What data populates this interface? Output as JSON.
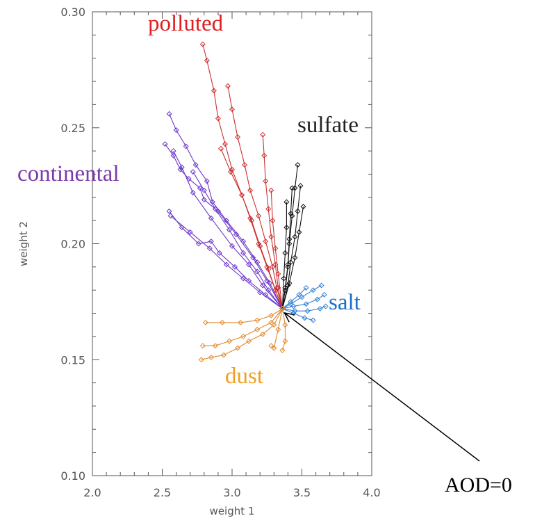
{
  "chart_data": {
    "type": "line",
    "title": "",
    "xlabel": "weight 1",
    "ylabel": "weight 2",
    "xlim": [
      2.0,
      4.0
    ],
    "ylim": [
      0.1,
      0.3
    ],
    "x_ticks": [
      "2.0",
      "2.5",
      "3.0",
      "3.5",
      "4.0"
    ],
    "y_ticks": [
      "0.10",
      "0.15",
      "0.20",
      "0.25",
      "0.30"
    ],
    "origin": {
      "x": 3.36,
      "y": 0.172
    },
    "marker": "diamond",
    "grid": false,
    "legend": "none",
    "series": [
      {
        "name": "continental",
        "color": "#6a35c9",
        "label_color": "#7a3aa8",
        "tracks": [
          [
            [
              2.55,
              0.256
            ],
            [
              2.6,
              0.249
            ],
            [
              2.67,
              0.242
            ],
            [
              2.74,
              0.234
            ],
            [
              2.82,
              0.227
            ],
            [
              2.86,
              0.218
            ],
            [
              2.96,
              0.21
            ],
            [
              3.08,
              0.201
            ],
            [
              3.18,
              0.192
            ],
            [
              3.27,
              0.183
            ],
            [
              3.36,
              0.172
            ]
          ],
          [
            [
              2.52,
              0.243
            ],
            [
              2.58,
              0.238
            ],
            [
              2.63,
              0.232
            ],
            [
              2.69,
              0.228
            ],
            [
              2.77,
              0.224
            ],
            [
              2.8,
              0.219
            ],
            [
              2.9,
              0.214
            ],
            [
              3.03,
              0.204
            ],
            [
              3.15,
              0.194
            ],
            [
              3.25,
              0.184
            ],
            [
              3.36,
              0.172
            ]
          ],
          [
            [
              2.58,
              0.24
            ],
            [
              2.64,
              0.233
            ],
            [
              2.72,
              0.222
            ],
            [
              2.85,
              0.211
            ],
            [
              3.0,
              0.199
            ],
            [
              3.12,
              0.191
            ],
            [
              3.22,
              0.182
            ],
            [
              3.36,
              0.172
            ]
          ],
          [
            [
              2.72,
              0.231
            ],
            [
              2.8,
              0.223
            ],
            [
              2.88,
              0.215
            ],
            [
              2.98,
              0.206
            ],
            [
              3.08,
              0.196
            ],
            [
              3.18,
              0.188
            ],
            [
              3.26,
              0.18
            ],
            [
              3.36,
              0.172
            ]
          ],
          [
            [
              2.55,
              0.214
            ],
            [
              2.64,
              0.207
            ],
            [
              2.76,
              0.2
            ],
            [
              2.85,
              0.201
            ],
            [
              2.91,
              0.196
            ],
            [
              3.02,
              0.19
            ],
            [
              3.12,
              0.184
            ],
            [
              3.24,
              0.178
            ],
            [
              3.36,
              0.172
            ]
          ],
          [
            [
              2.56,
              0.212
            ],
            [
              2.7,
              0.205
            ],
            [
              2.84,
              0.198
            ],
            [
              2.96,
              0.191
            ],
            [
              3.08,
              0.185
            ],
            [
              3.2,
              0.179
            ],
            [
              3.36,
              0.172
            ]
          ]
        ]
      },
      {
        "name": "polluted",
        "color": "#cc2e2e",
        "label_color": "#e02020",
        "tracks": [
          [
            [
              2.79,
              0.286
            ],
            [
              2.82,
              0.279
            ],
            [
              2.87,
              0.266
            ],
            [
              2.9,
              0.254
            ],
            [
              2.95,
              0.243
            ],
            [
              3.0,
              0.232
            ],
            [
              3.07,
              0.221
            ],
            [
              3.13,
              0.211
            ],
            [
              3.19,
              0.2
            ],
            [
              3.25,
              0.19
            ],
            [
              3.31,
              0.18
            ],
            [
              3.36,
              0.172
            ]
          ],
          [
            [
              2.97,
              0.268
            ],
            [
              3.0,
              0.258
            ],
            [
              3.04,
              0.246
            ],
            [
              3.09,
              0.234
            ],
            [
              3.13,
              0.223
            ],
            [
              3.19,
              0.212
            ],
            [
              3.24,
              0.201
            ],
            [
              3.29,
              0.19
            ],
            [
              3.32,
              0.181
            ],
            [
              3.36,
              0.172
            ]
          ],
          [
            [
              3.22,
              0.247
            ],
            [
              3.23,
              0.238
            ],
            [
              3.24,
              0.227
            ],
            [
              3.26,
              0.215
            ],
            [
              3.28,
              0.203
            ],
            [
              3.31,
              0.191
            ],
            [
              3.33,
              0.181
            ],
            [
              3.36,
              0.172
            ]
          ],
          [
            [
              3.28,
              0.223
            ],
            [
              3.29,
              0.21
            ],
            [
              3.31,
              0.198
            ],
            [
              3.33,
              0.187
            ],
            [
              3.36,
              0.172
            ]
          ],
          [
            [
              2.92,
              0.241
            ],
            [
              2.99,
              0.231
            ],
            [
              3.07,
              0.221
            ],
            [
              3.14,
              0.21
            ],
            [
              3.2,
              0.199
            ],
            [
              3.26,
              0.189
            ],
            [
              3.31,
              0.18
            ],
            [
              3.36,
              0.172
            ]
          ]
        ]
      },
      {
        "name": "sulfate",
        "color": "#111111",
        "label_color": "#222222",
        "tracks": [
          [
            [
              3.47,
              0.234
            ],
            [
              3.45,
              0.224
            ],
            [
              3.43,
              0.212
            ],
            [
              3.41,
              0.2
            ],
            [
              3.4,
              0.19
            ],
            [
              3.38,
              0.18
            ],
            [
              3.36,
              0.172
            ]
          ],
          [
            [
              3.49,
              0.225
            ],
            [
              3.47,
              0.214
            ],
            [
              3.45,
              0.203
            ],
            [
              3.42,
              0.192
            ],
            [
              3.4,
              0.182
            ],
            [
              3.36,
              0.172
            ]
          ],
          [
            [
              3.43,
              0.224
            ],
            [
              3.42,
              0.213
            ],
            [
              3.41,
              0.202
            ],
            [
              3.4,
              0.191
            ],
            [
              3.38,
              0.181
            ],
            [
              3.36,
              0.172
            ]
          ],
          [
            [
              3.39,
              0.218
            ],
            [
              3.39,
              0.207
            ],
            [
              3.38,
              0.196
            ],
            [
              3.37,
              0.185
            ],
            [
              3.36,
              0.172
            ]
          ],
          [
            [
              3.51,
              0.216
            ],
            [
              3.48,
              0.205
            ],
            [
              3.45,
              0.194
            ],
            [
              3.41,
              0.183
            ],
            [
              3.36,
              0.172
            ]
          ]
        ]
      },
      {
        "name": "salt",
        "color": "#2f7fd8",
        "label_color": "#1a6fc9",
        "tracks": [
          [
            [
              3.36,
              0.172
            ],
            [
              3.42,
              0.174
            ],
            [
              3.5,
              0.177
            ],
            [
              3.58,
              0.18
            ],
            [
              3.64,
              0.182
            ]
          ],
          [
            [
              3.36,
              0.172
            ],
            [
              3.44,
              0.173
            ],
            [
              3.53,
              0.174
            ],
            [
              3.61,
              0.176
            ],
            [
              3.66,
              0.178
            ]
          ],
          [
            [
              3.36,
              0.172
            ],
            [
              3.45,
              0.171
            ],
            [
              3.54,
              0.171
            ],
            [
              3.63,
              0.172
            ],
            [
              3.67,
              0.173
            ]
          ],
          [
            [
              3.36,
              0.172
            ],
            [
              3.44,
              0.17
            ],
            [
              3.52,
              0.168
            ],
            [
              3.58,
              0.167
            ]
          ],
          [
            [
              3.36,
              0.172
            ],
            [
              3.42,
              0.175
            ],
            [
              3.48,
              0.178
            ],
            [
              3.53,
              0.181
            ]
          ]
        ]
      },
      {
        "name": "dust",
        "color": "#e08a2e",
        "label_color": "#f0a020",
        "tracks": [
          [
            [
              3.36,
              0.172
            ],
            [
              3.28,
              0.169
            ],
            [
              3.18,
              0.167
            ],
            [
              3.06,
              0.166
            ],
            [
              2.93,
              0.166
            ],
            [
              2.81,
              0.166
            ]
          ],
          [
            [
              3.36,
              0.172
            ],
            [
              3.28,
              0.166
            ],
            [
              3.18,
              0.163
            ],
            [
              3.08,
              0.16
            ],
            [
              2.98,
              0.158
            ],
            [
              2.88,
              0.156
            ],
            [
              2.79,
              0.156
            ]
          ],
          [
            [
              3.36,
              0.172
            ],
            [
              3.3,
              0.165
            ],
            [
              3.22,
              0.161
            ],
            [
              3.12,
              0.158
            ],
            [
              3.04,
              0.155
            ],
            [
              2.94,
              0.152
            ],
            [
              2.85,
              0.151
            ],
            [
              2.78,
              0.15
            ]
          ],
          [
            [
              3.36,
              0.172
            ],
            [
              3.33,
              0.163
            ],
            [
              3.3,
              0.155
            ],
            [
              3.28,
              0.156
            ]
          ],
          [
            [
              3.36,
              0.172
            ],
            [
              3.38,
              0.165
            ],
            [
              3.38,
              0.158
            ],
            [
              3.36,
              0.154
            ]
          ]
        ]
      }
    ],
    "annotations": [
      {
        "text": "AOD=0",
        "points_to": {
          "x": 3.36,
          "y": 0.172
        }
      }
    ]
  }
}
